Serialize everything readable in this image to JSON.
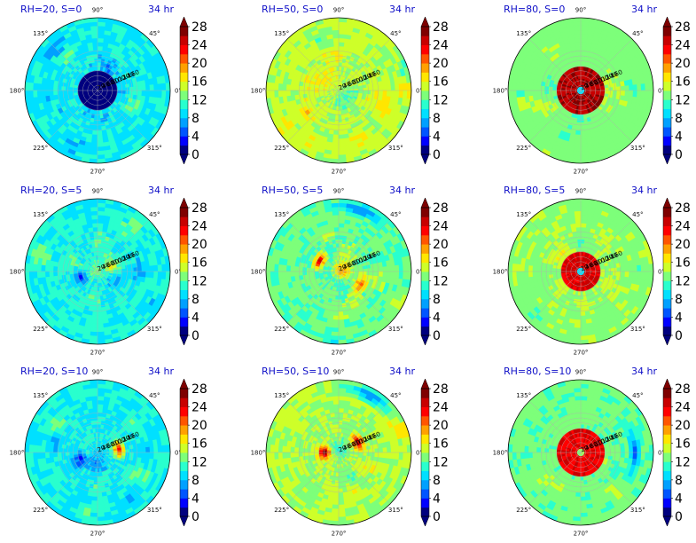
{
  "chart_data": {
    "type": "heatmap",
    "layout": "3x3 grid of polar filled-contour plots, each with its own colorbar",
    "time_label": "34 hr",
    "angle_ticks": [
      "90°",
      "45°",
      "0°",
      "315°",
      "270°",
      "225°",
      "180°",
      "135°"
    ],
    "radius_ticks": [
      "20",
      "40",
      "60",
      "80",
      "100",
      "120",
      "140",
      "160"
    ],
    "colorbar": {
      "ticks": [
        "0",
        "4",
        "8",
        "12",
        "16",
        "20",
        "24",
        "28"
      ],
      "range": [
        0,
        28
      ],
      "levels": [
        0,
        2,
        4,
        6,
        8,
        10,
        12,
        14,
        16,
        18,
        20,
        22,
        24,
        26,
        28
      ],
      "extend": "both",
      "colormap": [
        "#00007f",
        "#0000ff",
        "#0055ff",
        "#00a0ff",
        "#00e0ff",
        "#29ffce",
        "#7dff7a",
        "#ceff29",
        "#ffe600",
        "#ffa000",
        "#ff5500",
        "#ff0000",
        "#c80000",
        "#7f0000"
      ]
    },
    "panels": [
      {
        "title": "RH=20, S=0",
        "time": "34 hr",
        "mean": 9.5,
        "noise": 3.5,
        "core": {
          "r": 0.25,
          "value": 1.5
        },
        "ring": null,
        "bands": []
      },
      {
        "title": "RH=50, S=0",
        "time": "34 hr",
        "mean": 14.5,
        "noise": 2.8,
        "core": null,
        "ring": null,
        "bands": []
      },
      {
        "title": "RH=80, S=0",
        "time": "34 hr",
        "mean": 13,
        "noise": 2.0,
        "core": {
          "r": 0.05,
          "value": 8
        },
        "ring": {
          "r_inner": 0.05,
          "r_outer": 0.35,
          "value": 27
        },
        "bands": []
      },
      {
        "title": "RH=20, S=5",
        "time": "34 hr",
        "mean": 10,
        "noise": 3.0,
        "core": null,
        "ring": null,
        "bands": [
          {
            "angle": 200,
            "r": 0.25,
            "value": 3
          },
          {
            "angle": 20,
            "r": 0.2,
            "value": 18
          }
        ]
      },
      {
        "title": "RH=50, S=5",
        "time": "34 hr",
        "mean": 12.5,
        "noise": 3.0,
        "core": null,
        "ring": null,
        "bands": [
          {
            "angle": 150,
            "r": 0.3,
            "value": 26
          },
          {
            "angle": 330,
            "r": 0.35,
            "value": 22
          },
          {
            "angle": 70,
            "r": 0.9,
            "value": 5
          }
        ]
      },
      {
        "title": "RH=80, S=5",
        "time": "34 hr",
        "mean": 13.5,
        "noise": 2.0,
        "core": {
          "r": 0.05,
          "value": 8
        },
        "ring": {
          "r_inner": 0.06,
          "r_outer": 0.28,
          "value": 26
        },
        "bands": []
      },
      {
        "title": "RH=20, S=10",
        "time": "34 hr",
        "mean": 10,
        "noise": 2.8,
        "core": null,
        "ring": null,
        "bands": [
          {
            "angle": 10,
            "r": 0.3,
            "value": 24
          },
          {
            "angle": 200,
            "r": 0.25,
            "value": 3
          }
        ]
      },
      {
        "title": "RH=50, S=10",
        "time": "34 hr",
        "mean": 14,
        "noise": 2.5,
        "core": null,
        "ring": null,
        "bands": [
          {
            "angle": 30,
            "r": 0.3,
            "value": 27
          },
          {
            "angle": 180,
            "r": 0.2,
            "value": 28
          },
          {
            "angle": 60,
            "r": 0.9,
            "value": 5
          }
        ]
      },
      {
        "title": "RH=80, S=10",
        "time": "34 hr",
        "mean": 12.5,
        "noise": 2.0,
        "core": null,
        "ring": {
          "r_inner": 0.05,
          "r_outer": 0.35,
          "value": 25
        },
        "bands": [
          {
            "angle": 0,
            "r": 0.75,
            "value": 5
          }
        ]
      }
    ]
  }
}
